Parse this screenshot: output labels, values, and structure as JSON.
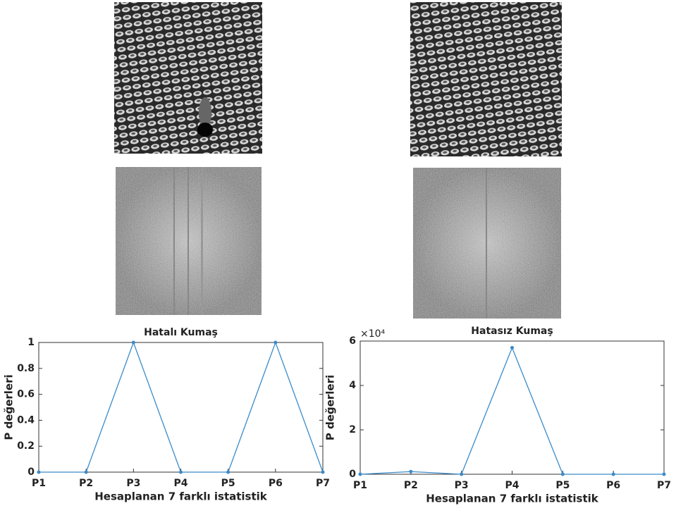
{
  "chart_data": [
    {
      "type": "line",
      "title": "Hatalı Kumaş",
      "xlabel": "Hesaplanan 7 farklı istatistik",
      "ylabel": "P değerleri",
      "categories": [
        "P1",
        "P2",
        "P3",
        "P4",
        "P5",
        "P6",
        "P7"
      ],
      "values": [
        0,
        0,
        1,
        0,
        0,
        1,
        0
      ],
      "color": "#3b8bc9",
      "ylim": [
        0,
        1
      ],
      "yticks": [
        0,
        0.2,
        0.4,
        0.6,
        0.8,
        1
      ]
    },
    {
      "type": "line",
      "title": "Hatasız Kumaş",
      "xlabel": "Hesaplanan 7 farklı istatistik",
      "ylabel": "P değerleri",
      "yaxis_multiplier": "×10⁴",
      "categories": [
        "P1",
        "P2",
        "P3",
        "P4",
        "P5",
        "P6",
        "P7"
      ],
      "values": [
        0,
        1200,
        0,
        57000,
        0,
        0,
        0
      ],
      "color": "#3b8bc9",
      "ylim": [
        0,
        60000
      ],
      "yticks": [
        {
          "value": 0,
          "label": "0"
        },
        {
          "value": 20000,
          "label": "2"
        },
        {
          "value": 40000,
          "label": "4"
        },
        {
          "value": 60000,
          "label": "6"
        }
      ]
    }
  ]
}
